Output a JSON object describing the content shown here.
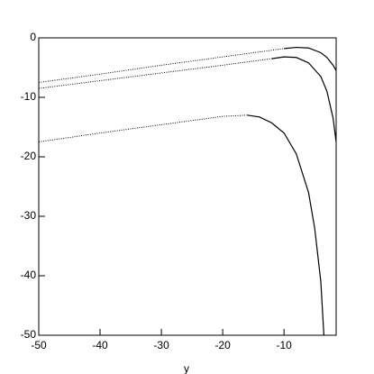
{
  "chart_data": {
    "type": "line",
    "x_label": "y",
    "xlim": [
      -50,
      -1.5
    ],
    "ylim": [
      -50,
      0
    ],
    "xticks": [
      -50,
      -40,
      -30,
      -20,
      -10
    ],
    "yticks": [
      0,
      -10,
      -20,
      -30,
      -40,
      -50
    ],
    "series": [
      {
        "color": "#000000",
        "style": "dotted",
        "x": [
          -50,
          -40,
          -30,
          -20,
          -10
        ],
        "values": [
          -7.5,
          -6.1,
          -4.6,
          -3.2,
          -1.8
        ]
      },
      {
        "color": "#000000",
        "style": "solid",
        "x": [
          -10,
          -8,
          -6,
          -4,
          -3,
          -2,
          -1.5
        ],
        "values": [
          -1.8,
          -1.6,
          -1.7,
          -2.5,
          -3.3,
          -4.6,
          -5.5
        ]
      },
      {
        "color": "#000000",
        "style": "dotted",
        "x": [
          -50,
          -40,
          -30,
          -20,
          -12
        ],
        "values": [
          -8.5,
          -7.2,
          -5.9,
          -4.6,
          -3.5
        ]
      },
      {
        "color": "#000000",
        "style": "solid",
        "x": [
          -12,
          -10,
          -8,
          -6,
          -4,
          -3,
          -2,
          -1.5
        ],
        "values": [
          -3.5,
          -3.2,
          -3.3,
          -4.2,
          -6.5,
          -9,
          -13.5,
          -17.5
        ]
      },
      {
        "color": "#000000",
        "style": "dotted",
        "x": [
          -50,
          -40,
          -30,
          -20,
          -16
        ],
        "values": [
          -17.5,
          -16,
          -14.6,
          -13.2,
          -13
        ]
      },
      {
        "color": "#000000",
        "style": "solid",
        "x": [
          -16,
          -14,
          -12,
          -10,
          -8,
          -6,
          -5,
          -4,
          -3.5
        ],
        "values": [
          -13,
          -13.3,
          -14.3,
          -16,
          -19.5,
          -26,
          -32,
          -41,
          -50
        ]
      }
    ]
  }
}
